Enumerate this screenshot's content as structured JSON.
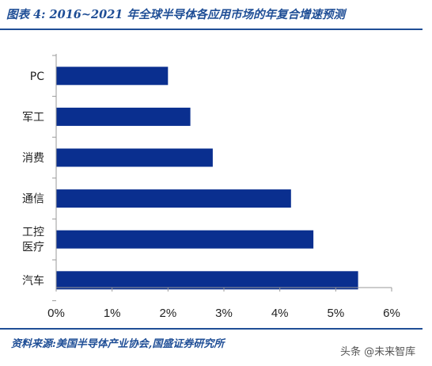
{
  "header": {
    "title": "图表 4:  2016~2021 年全球半导体各应用市场的年复合增速预测"
  },
  "footer": {
    "source": "资料来源:美国半导体产业协会,国盛证券研究所",
    "watermark": "头条 @未来智库"
  },
  "chart_data": {
    "type": "bar",
    "orientation": "horizontal",
    "title": "图表 4:  2016~2021 年全球半导体各应用市场的年复合增速预测",
    "categories": [
      [
        "PC"
      ],
      [
        "军工"
      ],
      [
        "消费"
      ],
      [
        "通信"
      ],
      [
        "工控",
        "医疗"
      ],
      [
        "汽车"
      ]
    ],
    "values": [
      0.02,
      0.024,
      0.028,
      0.042,
      0.046,
      0.054
    ],
    "xlim": [
      0,
      0.06
    ],
    "xticks": [
      0,
      0.01,
      0.02,
      0.03,
      0.04,
      0.05,
      0.06
    ],
    "xtick_labels": [
      "0%",
      "1%",
      "2%",
      "3%",
      "4%",
      "5%",
      "6%"
    ],
    "xlabel": "",
    "ylabel": "",
    "bar_color": "#0a2f8f",
    "grid": false,
    "legend": "none"
  }
}
